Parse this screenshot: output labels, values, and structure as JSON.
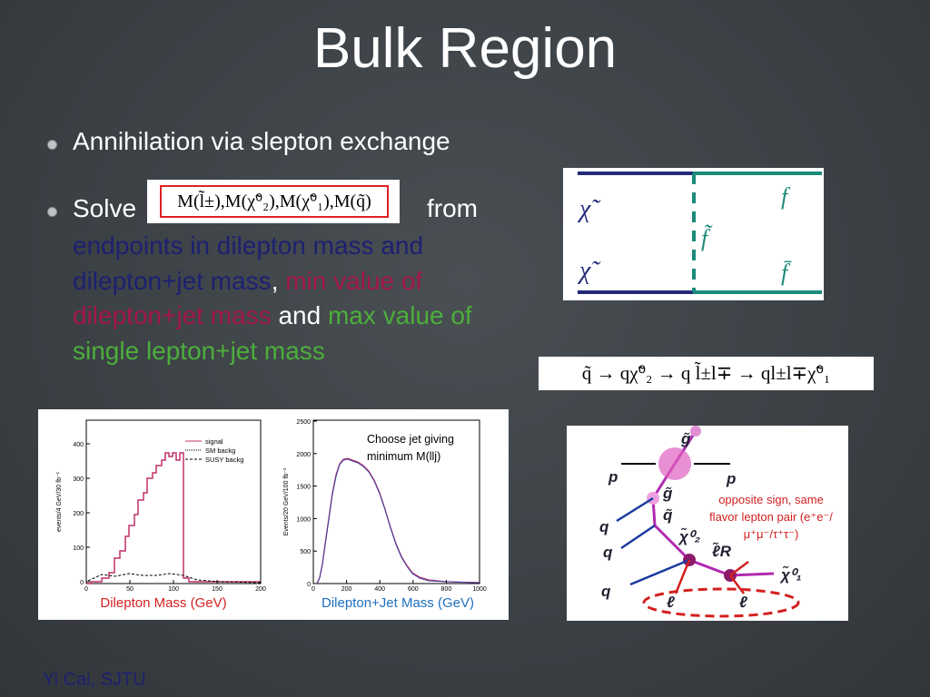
{
  "title": "Bulk Region",
  "bullets": [
    {
      "text": "Annihilation via slepton exchange"
    },
    {
      "lead": "Solve",
      "formula": "M(l̃±),M(χ̃⁰₂),M(χ̃⁰₁),M(q̃)",
      "tail": "from",
      "parts": [
        {
          "text": "endpoints in dilepton mass and dilepton+jet mass",
          "color": "#1c2170"
        },
        {
          "text": ", ",
          "color": "#ffffff"
        },
        {
          "text": "min value of dilepton+jet mass",
          "color": "#a3174a"
        },
        {
          "text": " and ",
          "color": "#ffffff"
        },
        {
          "text": "max value of single lepton+jet mass",
          "color": "#4cae3a"
        }
      ]
    }
  ],
  "feynman": {
    "in_top": "χ̃",
    "in_bottom": "χ̃",
    "propagator": "f̃",
    "out_top": "f",
    "out_bottom": "f̄"
  },
  "decay_chain": "q̃ → qχ̃⁰₂ → q l̃±l∓ → ql±l∓χ̃⁰₁",
  "plot_left": {
    "y_label": "events/4 GeV/30 fb⁻¹",
    "yticks": [
      0,
      100,
      200,
      300,
      400
    ],
    "xticks": [
      0,
      50,
      100,
      150,
      200
    ],
    "legend": [
      "signal",
      "SM backg",
      "SUSY backg"
    ],
    "caption": "Dilepton Mass (GeV)"
  },
  "plot_right": {
    "y_label": "Events/20 GeV/100 fb⁻¹",
    "yticks": [
      0,
      500,
      1000,
      1500,
      2000,
      2500
    ],
    "xticks": [
      0,
      200,
      400,
      600,
      800,
      1000
    ],
    "annotation": "Choose jet giving minimum M(llj)",
    "caption": "Dilepton+Jet Mass (GeV)"
  },
  "cascade": {
    "gluino_top": "g̃",
    "proton_left": "p",
    "proton_right": "p",
    "gluino": "g̃",
    "squark": "q̃",
    "quark_1": "q",
    "neutralino_2": "χ̃⁰₂",
    "slepton": "ℓ̃R",
    "neutralino_1": "χ̃⁰₁",
    "quark_2": "q",
    "quark_3": "q",
    "lepton_1": "ℓ",
    "lepton_2": "ℓ",
    "note": "opposite sign, same flavor lepton pair (e⁺e⁻/μ⁺μ⁻/τ⁺τ⁻)"
  },
  "footer": "Yi Cai, SJTU"
}
